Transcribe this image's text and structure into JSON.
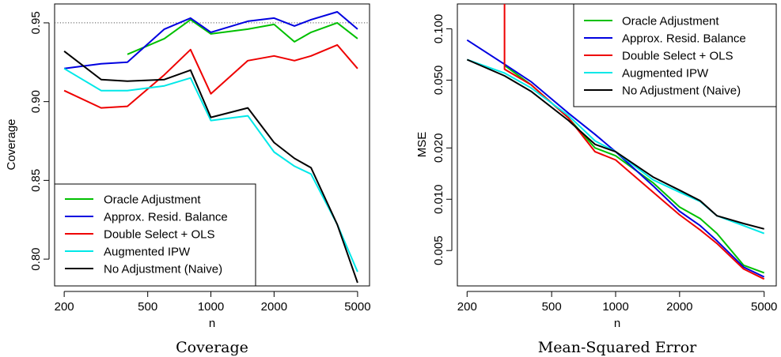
{
  "chart_data": [
    {
      "type": "line",
      "title": "Coverage",
      "xlabel": "n",
      "ylabel": "Coverage",
      "xscale": "log",
      "xlim": [
        180,
        5700
      ],
      "ylim": [
        0.783,
        0.962
      ],
      "xticks": [
        200,
        500,
        1000,
        2000,
        5000
      ],
      "xtick_labels": [
        "200",
        "500",
        "1000",
        "2000",
        "5000"
      ],
      "yticks": [
        0.8,
        0.85,
        0.9,
        0.95
      ],
      "ytick_labels": [
        "0.80",
        "0.85",
        "0.90",
        "0.95"
      ],
      "reference_line": 0.95,
      "legend_position": "bottom-left",
      "series": [
        {
          "name": "Oracle Adjustment",
          "color": "#00c000",
          "x": [
            400,
            600,
            800,
            1000,
            1500,
            2000,
            2500,
            3000,
            4000,
            5000
          ],
          "y": [
            0.93,
            0.94,
            0.952,
            0.943,
            0.946,
            0.949,
            0.938,
            0.944,
            0.95,
            0.94
          ]
        },
        {
          "name": "Approx. Resid. Balance",
          "color": "#0000e0",
          "x": [
            200,
            300,
            400,
            600,
            800,
            1000,
            1500,
            2000,
            2500,
            3000,
            4000,
            5000
          ],
          "y": [
            0.921,
            0.924,
            0.925,
            0.946,
            0.953,
            0.944,
            0.951,
            0.953,
            0.948,
            0.952,
            0.957,
            0.946
          ]
        },
        {
          "name": "Double Select + OLS",
          "color": "#ee0000",
          "x": [
            200,
            300,
            400,
            600,
            800,
            1000,
            1500,
            2000,
            2500,
            3000,
            4000,
            5000
          ],
          "y": [
            0.907,
            0.896,
            0.897,
            0.917,
            0.933,
            0.905,
            0.926,
            0.929,
            0.926,
            0.929,
            0.936,
            0.921
          ]
        },
        {
          "name": "Augmented IPW",
          "color": "#00e8e8",
          "x": [
            200,
            300,
            400,
            600,
            800,
            1000,
            1500,
            2000,
            2500,
            3000,
            4000,
            5000
          ],
          "y": [
            0.921,
            0.907,
            0.907,
            0.91,
            0.915,
            0.888,
            0.891,
            0.868,
            0.859,
            0.854,
            0.822,
            0.792
          ]
        },
        {
          "name": "No Adjustment (Naive)",
          "color": "#000000",
          "x": [
            200,
            300,
            400,
            600,
            800,
            1000,
            1500,
            2000,
            2500,
            3000,
            4000,
            5000
          ],
          "y": [
            0.932,
            0.914,
            0.913,
            0.914,
            0.92,
            0.89,
            0.896,
            0.874,
            0.864,
            0.858,
            0.822,
            0.785
          ]
        }
      ]
    },
    {
      "type": "line",
      "title": "Mean-Squared Error",
      "xlabel": "n",
      "ylabel": "MSE",
      "xscale": "log",
      "yscale": "log",
      "xlim": [
        180,
        5700
      ],
      "ylim": [
        0.0031,
        0.14
      ],
      "xticks": [
        200,
        500,
        1000,
        2000,
        5000
      ],
      "xtick_labels": [
        "200",
        "500",
        "1000",
        "2000",
        "5000"
      ],
      "yticks": [
        0.005,
        0.01,
        0.02,
        0.05,
        0.1
      ],
      "ytick_labels": [
        "0.005",
        "0.010",
        "0.020",
        "0.050",
        "0.100"
      ],
      "legend_position": "top-right",
      "series": [
        {
          "name": "Oracle Adjustment",
          "color": "#00c000",
          "x": [
            300,
            400,
            600,
            800,
            1000,
            1500,
            2000,
            2500,
            3000,
            4000,
            5000
          ],
          "y": [
            0.061,
            0.047,
            0.03,
            0.02,
            0.018,
            0.0125,
            0.009,
            0.0077,
            0.0063,
            0.0041,
            0.0037
          ]
        },
        {
          "name": "Approx. Resid. Balance",
          "color": "#0000e0",
          "x": [
            200,
            300,
            400,
            600,
            800,
            1000,
            1500,
            2000,
            2500,
            3000,
            4000,
            5000
          ],
          "y": [
            0.086,
            0.062,
            0.049,
            0.032,
            0.024,
            0.019,
            0.012,
            0.0085,
            0.007,
            0.0057,
            0.004,
            0.0035
          ]
        },
        {
          "name": "Double Select + OLS",
          "color": "#ee0000",
          "x": [
            300,
            300,
            400,
            600,
            800,
            1000,
            1500,
            2000,
            2500,
            3000,
            4000,
            5000
          ],
          "y": [
            0.14,
            0.058,
            0.047,
            0.03,
            0.019,
            0.017,
            0.011,
            0.0081,
            0.0066,
            0.0055,
            0.0039,
            0.0034
          ]
        },
        {
          "name": "Augmented IPW",
          "color": "#00e8e8",
          "x": [
            200,
            300,
            400,
            600,
            800,
            1000,
            1500,
            2000,
            2500,
            3000,
            4000,
            5000
          ],
          "y": [
            0.066,
            0.055,
            0.045,
            0.031,
            0.022,
            0.019,
            0.013,
            0.011,
            0.0097,
            0.008,
            0.007,
            0.0063
          ]
        },
        {
          "name": "No Adjustment (Naive)",
          "color": "#000000",
          "x": [
            200,
            300,
            400,
            600,
            800,
            1000,
            1500,
            2000,
            2500,
            3000,
            4000,
            5000
          ],
          "y": [
            0.066,
            0.053,
            0.043,
            0.029,
            0.021,
            0.019,
            0.0135,
            0.0113,
            0.0098,
            0.008,
            0.0072,
            0.0067
          ]
        }
      ]
    }
  ]
}
